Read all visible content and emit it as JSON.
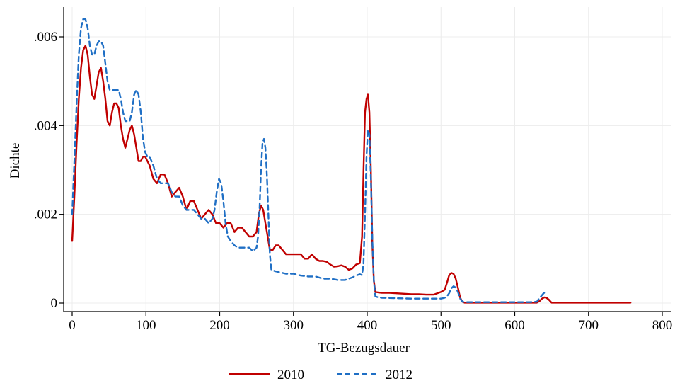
{
  "chart_data": {
    "type": "line",
    "title": "",
    "xlabel": "TG-Bezugsdauer",
    "ylabel": "Dichte",
    "xlim": [
      0,
      800
    ],
    "ylim": [
      0,
      0.0065
    ],
    "x_ticks": [
      0,
      100,
      200,
      300,
      400,
      500,
      600,
      700,
      800
    ],
    "x_tick_labels": [
      "0",
      "100",
      "200",
      "300",
      "400",
      "500",
      "600",
      "700",
      "800"
    ],
    "y_ticks": [
      0,
      0.002,
      0.004,
      0.006
    ],
    "y_tick_labels": [
      "0",
      ".002",
      ".004",
      ".006"
    ],
    "grid": true,
    "legend_position": "bottom",
    "series": [
      {
        "name": "2010",
        "color": "#c00000",
        "dash": "solid",
        "x": [
          0,
          3,
          6,
          9,
          12,
          15,
          18,
          21,
          24,
          27,
          30,
          33,
          36,
          39,
          42,
          45,
          48,
          51,
          54,
          57,
          60,
          63,
          66,
          69,
          72,
          75,
          78,
          81,
          84,
          87,
          90,
          93,
          96,
          99,
          102,
          105,
          110,
          115,
          120,
          125,
          130,
          135,
          140,
          145,
          150,
          155,
          160,
          165,
          170,
          175,
          180,
          185,
          190,
          195,
          200,
          205,
          210,
          215,
          220,
          225,
          230,
          235,
          240,
          245,
          250,
          253,
          256,
          259,
          262,
          265,
          268,
          272,
          276,
          280,
          285,
          290,
          295,
          300,
          305,
          310,
          315,
          320,
          325,
          330,
          335,
          340,
          345,
          350,
          355,
          360,
          365,
          370,
          375,
          380,
          385,
          390,
          393,
          395,
          397,
          399,
          401,
          403,
          405,
          407,
          409,
          411,
          415,
          420,
          430,
          440,
          450,
          460,
          470,
          480,
          490,
          500,
          505,
          508,
          511,
          514,
          517,
          520,
          523,
          526,
          529,
          532,
          540,
          560,
          580,
          600,
          620,
          630,
          634,
          637,
          640,
          643,
          646,
          650,
          660,
          680,
          700,
          720,
          740,
          757
        ],
        "y": [
          0.0014,
          0.0024,
          0.0036,
          0.0046,
          0.0053,
          0.0057,
          0.0058,
          0.0056,
          0.0051,
          0.0047,
          0.0046,
          0.0049,
          0.0052,
          0.0053,
          0.005,
          0.0046,
          0.0041,
          0.004,
          0.0043,
          0.0045,
          0.0045,
          0.0044,
          0.004,
          0.0037,
          0.0035,
          0.0037,
          0.0039,
          0.004,
          0.0038,
          0.0035,
          0.0032,
          0.0032,
          0.0033,
          0.0033,
          0.0032,
          0.0031,
          0.0028,
          0.0027,
          0.0029,
          0.0029,
          0.0027,
          0.0024,
          0.0025,
          0.0026,
          0.0024,
          0.0021,
          0.0023,
          0.0023,
          0.0021,
          0.0019,
          0.002,
          0.0021,
          0.002,
          0.0018,
          0.0018,
          0.0017,
          0.0018,
          0.0018,
          0.0016,
          0.0017,
          0.0017,
          0.0016,
          0.0015,
          0.0015,
          0.0016,
          0.002,
          0.0022,
          0.0021,
          0.0018,
          0.0015,
          0.0012,
          0.0012,
          0.0013,
          0.0013,
          0.0012,
          0.0011,
          0.0011,
          0.0011,
          0.0011,
          0.0011,
          0.001,
          0.001,
          0.0011,
          0.001,
          0.00095,
          0.00095,
          0.00093,
          0.00087,
          0.00082,
          0.00083,
          0.00085,
          0.00082,
          0.00075,
          0.00078,
          0.00087,
          0.0009,
          0.0015,
          0.003,
          0.0043,
          0.0046,
          0.0047,
          0.0043,
          0.003,
          0.0013,
          0.0005,
          0.00025,
          0.00024,
          0.00023,
          0.00023,
          0.00022,
          0.00021,
          0.0002,
          0.0002,
          0.00019,
          0.00019,
          0.00025,
          0.0003,
          0.00045,
          0.00062,
          0.00068,
          0.00066,
          0.00055,
          0.00035,
          0.00012,
          3e-05,
          1e-05,
          1e-05,
          1e-05,
          1e-05,
          1e-05,
          1e-05,
          1e-05,
          5e-05,
          0.0001,
          0.00013,
          0.00012,
          8e-05,
          1e-05,
          1e-05,
          1e-05,
          1e-05,
          1e-05,
          1e-05,
          1e-05
        ]
      },
      {
        "name": "2012",
        "color": "#1f6fc5",
        "dash": "dashed",
        "x": [
          0,
          3,
          6,
          9,
          12,
          15,
          18,
          21,
          24,
          27,
          30,
          33,
          36,
          39,
          42,
          45,
          48,
          51,
          54,
          57,
          60,
          63,
          66,
          69,
          72,
          75,
          78,
          81,
          84,
          87,
          90,
          93,
          96,
          99,
          102,
          105,
          110,
          115,
          120,
          125,
          130,
          135,
          140,
          145,
          150,
          155,
          160,
          165,
          170,
          175,
          180,
          185,
          190,
          193,
          196,
          199,
          202,
          205,
          208,
          211,
          215,
          220,
          225,
          230,
          235,
          240,
          245,
          250,
          252,
          254,
          256,
          258,
          260,
          262,
          264,
          266,
          268,
          270,
          275,
          280,
          290,
          300,
          310,
          320,
          330,
          340,
          350,
          360,
          370,
          380,
          385,
          390,
          393,
          395,
          397,
          399,
          401,
          403,
          405,
          407,
          409,
          411,
          415,
          420,
          440,
          460,
          480,
          500,
          505,
          508,
          511,
          514,
          517,
          520,
          523,
          526,
          529,
          532,
          540,
          560,
          580,
          600,
          620,
          630,
          633,
          636,
          639,
          642
        ],
        "y": [
          0.002,
          0.0032,
          0.0045,
          0.0056,
          0.0062,
          0.0064,
          0.0064,
          0.0062,
          0.0058,
          0.0056,
          0.0056,
          0.0058,
          0.0059,
          0.0059,
          0.0058,
          0.0054,
          0.005,
          0.0048,
          0.0048,
          0.0048,
          0.0048,
          0.0048,
          0.0046,
          0.0043,
          0.0041,
          0.0041,
          0.0041,
          0.0043,
          0.0047,
          0.0048,
          0.0047,
          0.0043,
          0.0037,
          0.0034,
          0.0033,
          0.0033,
          0.0031,
          0.0028,
          0.0027,
          0.0027,
          0.0027,
          0.0025,
          0.0024,
          0.0024,
          0.0022,
          0.0021,
          0.0021,
          0.0021,
          0.002,
          0.0019,
          0.0019,
          0.0018,
          0.0019,
          0.0021,
          0.0025,
          0.0028,
          0.0027,
          0.0023,
          0.0018,
          0.0015,
          0.0014,
          0.0013,
          0.00125,
          0.00125,
          0.00125,
          0.00125,
          0.00117,
          0.00125,
          0.0015,
          0.0021,
          0.003,
          0.0036,
          0.0037,
          0.0035,
          0.0029,
          0.002,
          0.0011,
          0.00075,
          0.00072,
          0.0007,
          0.00066,
          0.00066,
          0.00062,
          0.0006,
          0.0006,
          0.00055,
          0.00055,
          0.00052,
          0.00052,
          0.00058,
          0.00062,
          0.00065,
          0.00063,
          0.0009,
          0.002,
          0.0033,
          0.0039,
          0.0038,
          0.0028,
          0.0014,
          0.0005,
          0.00015,
          0.00013,
          0.00012,
          0.00011,
          0.0001,
          0.0001,
          0.0001,
          0.00012,
          0.00015,
          0.00022,
          0.00033,
          0.00038,
          0.00035,
          0.00025,
          0.0001,
          3e-05,
          2e-05,
          2e-05,
          2e-05,
          2e-05,
          2e-05,
          2e-05,
          3e-05,
          0.0001,
          0.00016,
          0.00022,
          0.00026
        ]
      }
    ]
  }
}
